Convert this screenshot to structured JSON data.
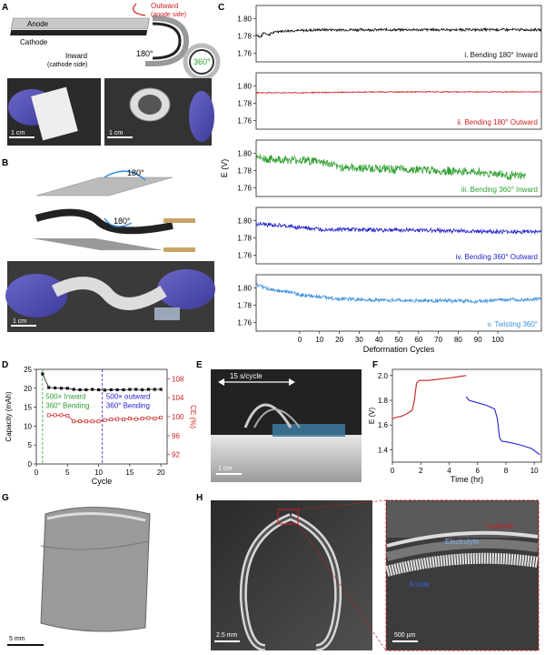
{
  "panels": {
    "a": {
      "letter": "A",
      "anode": "Anode",
      "cathode": "Cathode",
      "outward": "Outward",
      "outward_sub": "(anode side)",
      "inward": "Inward",
      "inward_sub": "(cathode side)",
      "angle_180": "180°",
      "angle_360": "360°",
      "scale1": "1 cm",
      "scale2": "1 cm"
    },
    "b": {
      "letter": "B",
      "angle_top": "180°",
      "angle_bot": "180°",
      "scale": "1 cm"
    },
    "e": {
      "letter": "E",
      "speed": "15 s/cycle",
      "scale": "1 cm"
    },
    "g": {
      "letter": "G",
      "scale": "5 mm"
    },
    "h": {
      "letter": "H",
      "scale_left": "2.5 mm",
      "scale_right": "500 µm",
      "cathode": "Cathode",
      "electrolyte": "Electrolyte",
      "anode": "Anode"
    }
  },
  "colors": {
    "black": "#111111",
    "red": "#cc1f1f",
    "green": "#2e9e2e",
    "blue": "#2222cc",
    "lightblue": "#3b8fdb"
  },
  "chart_data": [
    {
      "id": "C",
      "letter": "C",
      "type": "line",
      "ylabel": "E (V)",
      "xlabel": "Deformation Cycles",
      "ylim": [
        1.75,
        1.815
      ],
      "yticks": [
        "1.80",
        "1.78",
        "1.76"
      ],
      "ytick_values": [
        1.8,
        1.78,
        1.76
      ],
      "xlim": [
        -22,
        122
      ],
      "xticks": [
        "0",
        "10",
        "20",
        "30",
        "40",
        "50",
        "60",
        "70",
        "80",
        "90",
        "100"
      ],
      "xtick_values": [
        0,
        10,
        20,
        30,
        40,
        50,
        60,
        70,
        80,
        90,
        100
      ],
      "series": [
        {
          "name": "i. Bending 180° Inward",
          "color": "#111111",
          "x": [
            -22,
            -20,
            -18,
            -16,
            -12,
            -5,
            0,
            10,
            20,
            40,
            60,
            80,
            100,
            122
          ],
          "y": [
            1.782,
            1.778,
            1.784,
            1.781,
            1.785,
            1.786,
            1.786,
            1.787,
            1.787,
            1.787,
            1.787,
            1.787,
            1.787,
            1.787
          ],
          "noise": 0.0012
        },
        {
          "name": "ii. Bending 180° Outward",
          "color": "#cc1f1f",
          "x": [
            -22,
            0,
            40,
            80,
            122
          ],
          "y": [
            1.792,
            1.792,
            1.793,
            1.793,
            1.793
          ],
          "noise": 0.0005
        },
        {
          "name": "iii. Bending 360° Inward",
          "color": "#2e9e2e",
          "x": [
            -22,
            -20,
            -15,
            0,
            10,
            15,
            20,
            30,
            40,
            50,
            60,
            70,
            80,
            90,
            102,
            104,
            114
          ],
          "y": [
            1.8,
            1.794,
            1.793,
            1.792,
            1.791,
            1.787,
            1.784,
            1.783,
            1.782,
            1.781,
            1.781,
            1.78,
            1.779,
            1.778,
            1.776,
            1.774,
            1.774
          ],
          "noise": 0.004
        },
        {
          "name": "iv. Bending 360° Outward",
          "color": "#2222cc",
          "x": [
            -22,
            -10,
            0,
            10,
            20,
            40,
            60,
            80,
            100,
            122
          ],
          "y": [
            1.796,
            1.794,
            1.792,
            1.79,
            1.79,
            1.789,
            1.789,
            1.788,
            1.787,
            1.787
          ],
          "noise": 0.002
        },
        {
          "name": "v. Twisting 360°",
          "color": "#3b8fdb",
          "x": [
            -22,
            -15,
            -5,
            0,
            10,
            20,
            40,
            60,
            80,
            90,
            100,
            122
          ],
          "y": [
            1.803,
            1.798,
            1.795,
            1.792,
            1.79,
            1.787,
            1.786,
            1.785,
            1.785,
            1.784,
            1.786,
            1.787
          ],
          "noise": 0.0018
        }
      ]
    },
    {
      "id": "D",
      "letter": "D",
      "type": "line",
      "xlabel": "Cycle",
      "ylabel_left": "Capacity (mAh)",
      "ylabel_right": "CE (%)",
      "ylim_left": [
        0,
        25
      ],
      "ylim_right": [
        90,
        110
      ],
      "xlim": [
        0,
        21
      ],
      "xticks": [
        "0",
        "5",
        "10",
        "15",
        "20"
      ],
      "xtick_values": [
        0,
        5,
        10,
        15,
        20
      ],
      "yticks_left": [
        "0",
        "5",
        "10",
        "15",
        "20",
        "25"
      ],
      "ytick_left_values": [
        0,
        5,
        10,
        15,
        20,
        25
      ],
      "yticks_right": [
        "92",
        "96",
        "100",
        "104",
        "108"
      ],
      "ytick_right_values": [
        92,
        96,
        100,
        104,
        108
      ],
      "annotations": [
        "500× Inward",
        "360° Bending",
        "500× outward",
        "360° Bending"
      ],
      "vlines": [
        1,
        10.6
      ],
      "series": [
        {
          "name": "Capacity",
          "axis": "left",
          "color": "#111111",
          "x": [
            1,
            2,
            3,
            4,
            5,
            6,
            7,
            8,
            9,
            10,
            11,
            12,
            13,
            14,
            15,
            16,
            17,
            18,
            19,
            20
          ],
          "y": [
            23.8,
            20.2,
            20.1,
            20.0,
            20.0,
            19.7,
            19.6,
            19.6,
            19.7,
            19.6,
            19.5,
            19.6,
            19.6,
            19.6,
            19.7,
            19.7,
            19.6,
            19.7,
            19.7,
            19.7
          ]
        },
        {
          "name": "CE",
          "axis": "right",
          "color": "#cc1f1f",
          "x": [
            2,
            3,
            4,
            5,
            6,
            7,
            8,
            9,
            10,
            11,
            12,
            13,
            14,
            15,
            16,
            17,
            18,
            19,
            20
          ],
          "y": [
            100.3,
            100.3,
            100.3,
            100.2,
            99.0,
            99.0,
            99.0,
            99.0,
            99.0,
            99.3,
            99.4,
            99.5,
            99.4,
            99.6,
            99.5,
            99.6,
            99.7,
            99.6,
            99.8
          ]
        }
      ]
    },
    {
      "id": "F",
      "letter": "F",
      "type": "line",
      "xlabel": "Time (hr)",
      "ylabel": "E (V)",
      "xlim": [
        0,
        10.5
      ],
      "ylim": [
        1.3,
        2.05
      ],
      "xticks": [
        "0",
        "2",
        "4",
        "6",
        "8",
        "10"
      ],
      "xtick_values": [
        0,
        2,
        4,
        6,
        8,
        10
      ],
      "yticks": [
        "1.4",
        "1.6",
        "1.8",
        "2.0"
      ],
      "ytick_values": [
        1.4,
        1.6,
        1.8,
        2.0
      ],
      "series": [
        {
          "name": "charge",
          "color": "#cc1f1f",
          "x": [
            0,
            0.2,
            0.6,
            1.0,
            1.4,
            1.55,
            1.7,
            1.9,
            2.5,
            3.2,
            4.0,
            4.6,
            5.2
          ],
          "y": [
            1.65,
            1.66,
            1.67,
            1.69,
            1.72,
            1.8,
            1.94,
            1.96,
            1.96,
            1.97,
            1.98,
            1.99,
            2.0
          ]
        },
        {
          "name": "discharge",
          "color": "#2222cc",
          "x": [
            5.2,
            5.4,
            6.0,
            6.6,
            7.2,
            7.4,
            7.55,
            7.7,
            8.2,
            9.0,
            9.8,
            10.4
          ],
          "y": [
            1.83,
            1.8,
            1.78,
            1.76,
            1.73,
            1.65,
            1.5,
            1.47,
            1.46,
            1.44,
            1.41,
            1.36
          ]
        }
      ]
    }
  ]
}
